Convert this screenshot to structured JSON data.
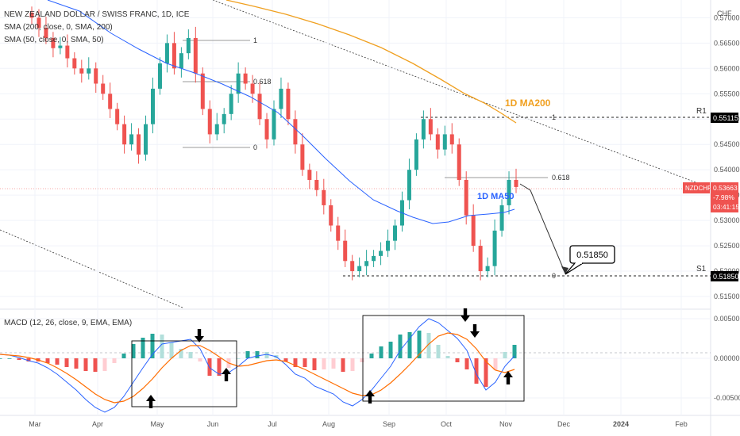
{
  "header": {
    "symbol_line": "NEW ZEALAND DOLLAR / SWISS FRANC, 1D, ICE",
    "sma200_line": "SMA (200, close, 0, SMA, 200)",
    "sma50_line": "SMA (50, close, 0, SMA, 50)",
    "currency": "CHF"
  },
  "colors": {
    "up": "#26a69a",
    "down": "#ef5350",
    "ma50": "#2962ff",
    "ma200": "#f0a020",
    "macd_line": "#2962ff",
    "signal_line": "#ff6d00",
    "price_tag": "#ef5350"
  },
  "chart_data": [
    {
      "type": "candlestick",
      "panel": "price",
      "x_tick_labels": [
        "Mar",
        "Apr",
        "May",
        "Jun",
        "Jul",
        "Aug",
        "Sep",
        "Oct",
        "Nov",
        "Dec",
        "2024",
        "Feb"
      ],
      "y_tick_labels": [
        "0.57000",
        "0.56500",
        "0.56000",
        "0.55500",
        "0.55000",
        "0.54500",
        "0.54000",
        "0.53500",
        "0.53000",
        "0.52500",
        "0.52000",
        "0.51500"
      ],
      "ylim": [
        0.5125,
        0.5735
      ],
      "closes": [
        0.57,
        0.568,
        0.566,
        0.564,
        0.5645,
        0.562,
        0.56,
        0.559,
        0.56,
        0.557,
        0.555,
        0.552,
        0.549,
        0.545,
        0.547,
        0.543,
        0.549,
        0.556,
        0.561,
        0.565,
        0.56,
        0.563,
        0.566,
        0.559,
        0.552,
        0.547,
        0.549,
        0.551,
        0.555,
        0.559,
        0.557,
        0.555,
        0.55,
        0.546,
        0.552,
        0.556,
        0.55,
        0.545,
        0.54,
        0.538,
        0.536,
        0.533,
        0.529,
        0.526,
        0.522,
        0.52,
        0.521,
        0.522,
        0.523,
        0.524,
        0.526,
        0.529,
        0.534,
        0.54,
        0.546,
        0.55,
        0.547,
        0.544,
        0.547,
        0.545,
        0.538,
        0.531,
        0.525,
        0.52,
        0.521,
        0.528,
        0.533,
        0.538,
        0.5366
      ],
      "fib_upper": {
        "levels": [
          "1",
          "0.618",
          "0"
        ],
        "prices": [
          0.567,
          0.559,
          0.545
        ]
      },
      "fib_lower": {
        "levels": [
          "1",
          "0.618",
          "0"
        ],
        "prices": [
          0.55,
          0.539,
          0.5185
        ]
      },
      "ma200_label": "1D MA200",
      "ma50_label": "1D MA50",
      "target_callout": "0.51850",
      "r1": {
        "label": "R1",
        "value": "0.55115"
      },
      "s1": {
        "label": "S1",
        "value": "0.51850"
      },
      "last_price": {
        "symbol": "NZDCHF",
        "value": "0.53663",
        "change": "-7.98%",
        "countdown": "03:41:15"
      }
    },
    {
      "type": "macd",
      "panel": "macd",
      "title": "MACD (12, 26, close, 9, EMA, EMA)",
      "y_tick_labels": [
        "0.00500",
        "0.00000",
        "-0.00500"
      ],
      "ylim": [
        -0.007,
        0.006
      ],
      "macd": [
        0.0005,
        0.0004,
        0.0001,
        -0.0003,
        -0.0006,
        -0.0012,
        -0.002,
        -0.003,
        -0.004,
        -0.0052,
        -0.0062,
        -0.0068,
        -0.0062,
        -0.0048,
        -0.003,
        -0.0012,
        0.0005,
        0.0018,
        0.002,
        0.0022,
        0.0024,
        0.0012,
        -0.0012,
        -0.002,
        -0.0018,
        -0.001,
        0.0,
        0.0003,
        0.0005,
        0.0002,
        -0.0008,
        -0.002,
        -0.0025,
        -0.0035,
        -0.004,
        -0.0045,
        -0.0055,
        -0.006,
        -0.0052,
        -0.004,
        -0.0025,
        -0.001,
        0.001,
        0.0025,
        0.004,
        0.005,
        0.0045,
        0.0035,
        0.0025,
        0.001,
        -0.002,
        -0.004,
        -0.003,
        -0.001,
        0.0003
      ],
      "signal": [
        0.0005,
        0.0004,
        0.0003,
        0.0001,
        -0.0002,
        -0.0006,
        -0.0012,
        -0.0019,
        -0.0027,
        -0.0036,
        -0.0045,
        -0.0052,
        -0.0056,
        -0.0054,
        -0.0048,
        -0.0038,
        -0.0026,
        -0.0012,
        0.0,
        0.001,
        0.0016,
        0.0016,
        0.001,
        0.0002,
        -0.0006,
        -0.001,
        -0.0009,
        -0.0006,
        -0.0003,
        -0.0002,
        -0.0004,
        -0.0009,
        -0.0014,
        -0.002,
        -0.0026,
        -0.0032,
        -0.0038,
        -0.0044,
        -0.0047,
        -0.0046,
        -0.004,
        -0.0031,
        -0.002,
        -0.0008,
        0.0005,
        0.0018,
        0.0028,
        0.0032,
        0.003,
        0.0024,
        0.0012,
        -0.0004,
        -0.0015,
        -0.0018,
        -0.0014
      ],
      "arrows": [
        "down",
        "down",
        "up",
        "up",
        "up",
        "down",
        "up"
      ],
      "arrow_names": [
        "arrow-down-1",
        "arrow-down-2",
        "arrow-up-1",
        "arrow-up-2",
        "arrow-up-3",
        "arrow-down-3",
        "arrow-up-4"
      ]
    }
  ]
}
